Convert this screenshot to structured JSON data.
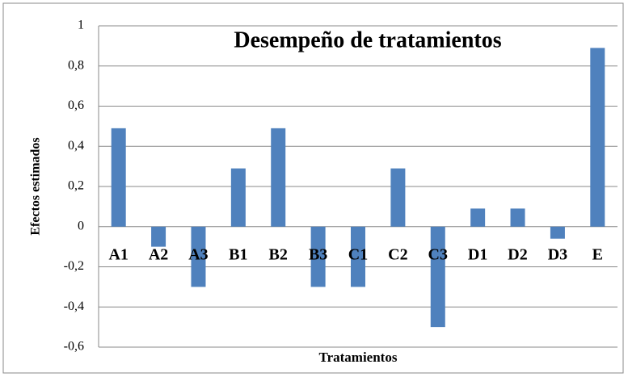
{
  "chart_data": {
    "type": "bar",
    "title": "Desempeño de tratamientos",
    "x_label": "Tratamientos",
    "y_label": "Efectos estimados",
    "categories": [
      "A1",
      "A2",
      "A3",
      "B1",
      "B2",
      "B3",
      "C1",
      "C2",
      "C3",
      "D1",
      "D2",
      "D3",
      "E"
    ],
    "values": [
      0.49,
      -0.1,
      -0.3,
      0.29,
      0.49,
      -0.3,
      -0.3,
      0.29,
      -0.5,
      0.09,
      0.09,
      -0.06,
      0.89
    ],
    "color": "#4f81bd",
    "ylim": [
      -0.6,
      1
    ],
    "yticks": [
      {
        "value": -0.6,
        "label": "-0,6"
      },
      {
        "value": -0.4,
        "label": "-0,4"
      },
      {
        "value": -0.2,
        "label": "-0,2"
      },
      0,
      {
        "value": 0.2,
        "label": "0,2"
      },
      {
        "value": 0.4,
        "label": "0,4"
      },
      {
        "value": 0.6,
        "label": "0,6"
      },
      {
        "value": 0.8,
        "label": "0,8"
      },
      1
    ],
    "grid": true
  }
}
